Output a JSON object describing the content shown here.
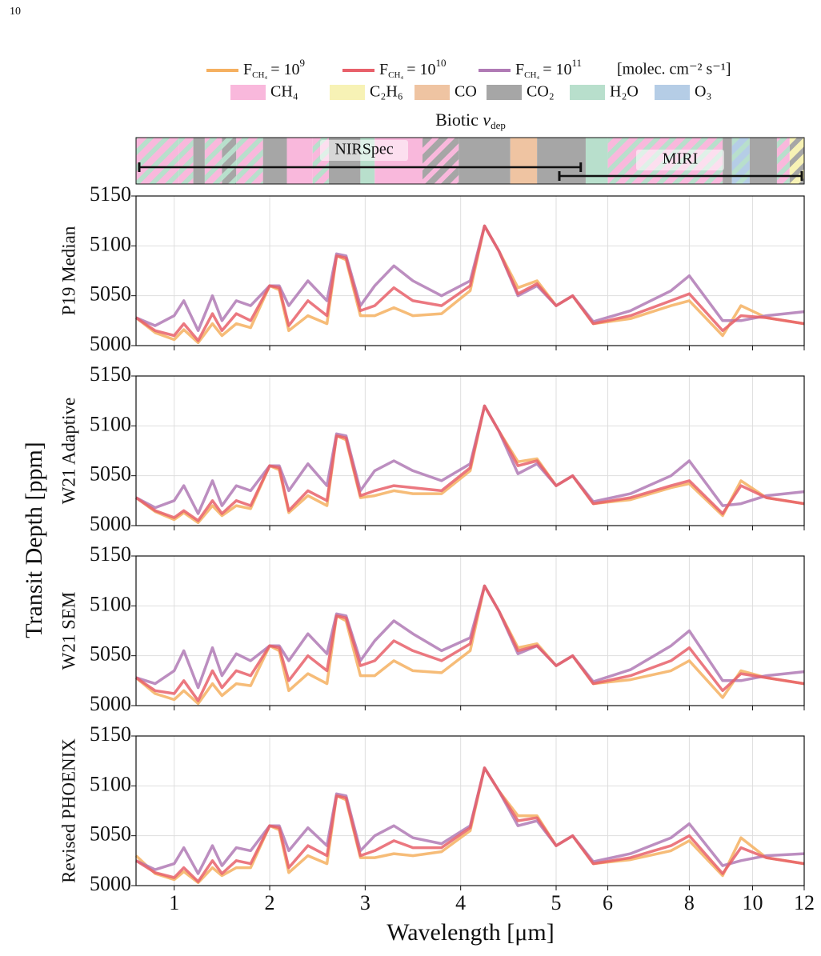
{
  "page_number": "10",
  "legend": {
    "series": [
      {
        "name": [
          "F",
          "CH₄",
          "= 10",
          "9"
        ],
        "color": "#f5b060"
      },
      {
        "name": [
          "F",
          "CH₄",
          "= 10",
          "10"
        ],
        "color": "#e8606a"
      },
      {
        "name": [
          "F",
          "CH₄",
          "= 10",
          "11"
        ],
        "color": "#b07ab5"
      }
    ],
    "units": "[molec. cm⁻² s⁻¹]"
  },
  "absorbers": {
    "title": [
      "Biotic ",
      "v",
      "dep"
    ],
    "species": [
      {
        "name": "CH₄",
        "color": "#f9b8dc"
      },
      {
        "name": "C₂H₆",
        "color": "#f7f2b5"
      },
      {
        "name": "CO",
        "color": "#efc4a2"
      },
      {
        "name": "CO₂",
        "color": "#a6a6a6"
      },
      {
        "name": "H₂O",
        "color": "#b8dfcc"
      },
      {
        "name": "O₃",
        "color": "#b5cde6"
      }
    ],
    "bands": [
      {
        "species": [
          0,
          4
        ],
        "range": [
          0.6,
          1.05
        ]
      },
      {
        "species": [
          0,
          4
        ],
        "range": [
          1.05,
          1.2
        ]
      },
      {
        "species": [
          3
        ],
        "range": [
          1.2,
          1.32
        ]
      },
      {
        "species": [
          0,
          4
        ],
        "range": [
          1.32,
          1.5
        ]
      },
      {
        "species": [
          3,
          4
        ],
        "range": [
          1.5,
          1.65
        ]
      },
      {
        "species": [
          0,
          4
        ],
        "range": [
          1.65,
          1.93
        ]
      },
      {
        "species": [
          3
        ],
        "range": [
          1.93,
          2.18
        ]
      },
      {
        "species": [
          0
        ],
        "range": [
          2.18,
          2.45
        ]
      },
      {
        "species": [
          0,
          4
        ],
        "range": [
          2.45,
          2.62
        ]
      },
      {
        "species": [
          3
        ],
        "range": [
          2.62,
          2.95
        ]
      },
      {
        "species": [
          4
        ],
        "range": [
          2.95,
          3.1
        ]
      },
      {
        "species": [
          0
        ],
        "range": [
          3.1,
          3.6
        ]
      },
      {
        "species": [
          3,
          0
        ],
        "range": [
          3.6,
          3.98
        ]
      },
      {
        "species": [
          3
        ],
        "range": [
          3.98,
          4.52
        ]
      },
      {
        "species": [
          2
        ],
        "range": [
          4.52,
          4.8
        ]
      },
      {
        "species": [
          3
        ],
        "range": [
          4.8,
          5.55
        ]
      },
      {
        "species": [
          4
        ],
        "range": [
          5.55,
          6.0
        ]
      },
      {
        "species": [
          0,
          4
        ],
        "range": [
          6.0,
          9.0
        ]
      },
      {
        "species": [
          3
        ],
        "range": [
          9.0,
          9.3
        ]
      },
      {
        "species": [
          5,
          4
        ],
        "range": [
          9.3,
          9.9
        ]
      },
      {
        "species": [
          3
        ],
        "range": [
          9.9,
          10.9
        ]
      },
      {
        "species": [
          0,
          4
        ],
        "range": [
          10.9,
          11.4
        ]
      },
      {
        "species": [
          1,
          3
        ],
        "range": [
          11.4,
          12.0
        ]
      }
    ],
    "instruments": [
      {
        "name": "NIRSpec",
        "range": [
          0.6,
          5.5
        ]
      },
      {
        "name": "MIRI",
        "range": [
          5.0,
          12.0
        ]
      }
    ]
  },
  "xlabel": "Wavelength [μm]",
  "ylabel": "Transit Depth [ppm]",
  "xlim": [
    0.6,
    12
  ],
  "xscale": "linear-log",
  "xbreak": 5,
  "xticks": [
    1,
    2,
    3,
    4,
    5,
    6,
    8,
    10,
    12
  ],
  "grid": true,
  "chart_data": [
    {
      "type": "line",
      "ylabel": "P19 Median",
      "ylim": [
        5000,
        5150
      ],
      "yticks": [
        5000,
        5050,
        5100,
        5150
      ],
      "x": [
        0.6,
        0.8,
        1.0,
        1.1,
        1.25,
        1.4,
        1.5,
        1.65,
        1.8,
        2.0,
        2.1,
        2.2,
        2.4,
        2.6,
        2.7,
        2.8,
        2.95,
        3.1,
        3.3,
        3.5,
        3.8,
        4.1,
        4.25,
        4.4,
        4.6,
        4.8,
        5.0,
        5.3,
        5.7,
        6.5,
        7.5,
        8.0,
        9.0,
        9.6,
        10.5,
        12.0
      ],
      "series": [
        {
          "values": [
            5028,
            5013,
            5006,
            5016,
            5003,
            5022,
            5010,
            5022,
            5018,
            5060,
            5056,
            5015,
            5030,
            5022,
            5090,
            5086,
            5030,
            5030,
            5038,
            5030,
            5032,
            5055,
            5120,
            5095,
            5058,
            5065,
            5040,
            5050,
            5022,
            5027,
            5040,
            5045,
            5010,
            5040,
            5028,
            5022
          ]
        },
        {
          "values": [
            5028,
            5015,
            5010,
            5022,
            5005,
            5032,
            5015,
            5032,
            5025,
            5060,
            5058,
            5020,
            5045,
            5030,
            5090,
            5088,
            5035,
            5040,
            5058,
            5045,
            5040,
            5060,
            5120,
            5095,
            5052,
            5062,
            5040,
            5050,
            5022,
            5030,
            5045,
            5052,
            5015,
            5030,
            5028,
            5022
          ]
        },
        {
          "values": [
            5028,
            5020,
            5030,
            5045,
            5015,
            5050,
            5025,
            5045,
            5040,
            5060,
            5060,
            5040,
            5065,
            5045,
            5092,
            5090,
            5040,
            5060,
            5080,
            5065,
            5050,
            5065,
            5120,
            5095,
            5050,
            5060,
            5040,
            5050,
            5024,
            5035,
            5055,
            5070,
            5025,
            5025,
            5030,
            5034
          ]
        }
      ]
    },
    {
      "type": "line",
      "ylabel": "W21 Adaptive",
      "ylim": [
        5000,
        5150
      ],
      "yticks": [
        5000,
        5050,
        5100,
        5150
      ],
      "x": [
        0.6,
        0.8,
        1.0,
        1.1,
        1.25,
        1.4,
        1.5,
        1.65,
        1.8,
        2.0,
        2.1,
        2.2,
        2.4,
        2.6,
        2.7,
        2.8,
        2.95,
        3.1,
        3.3,
        3.5,
        3.8,
        4.1,
        4.25,
        4.4,
        4.6,
        4.8,
        5.0,
        5.3,
        5.7,
        6.5,
        7.5,
        8.0,
        9.0,
        9.6,
        10.5,
        12.0
      ],
      "series": [
        {
          "values": [
            5028,
            5014,
            5006,
            5013,
            5003,
            5020,
            5010,
            5020,
            5017,
            5060,
            5056,
            5013,
            5030,
            5020,
            5090,
            5086,
            5028,
            5030,
            5035,
            5032,
            5032,
            5055,
            5120,
            5095,
            5064,
            5067,
            5040,
            5050,
            5022,
            5026,
            5038,
            5042,
            5010,
            5045,
            5028,
            5022
          ]
        },
        {
          "values": [
            5028,
            5015,
            5008,
            5015,
            5005,
            5025,
            5012,
            5025,
            5020,
            5060,
            5058,
            5015,
            5035,
            5025,
            5090,
            5088,
            5030,
            5035,
            5040,
            5038,
            5035,
            5058,
            5120,
            5095,
            5060,
            5065,
            5040,
            5050,
            5022,
            5028,
            5040,
            5045,
            5012,
            5040,
            5028,
            5022
          ]
        },
        {
          "values": [
            5028,
            5018,
            5025,
            5040,
            5012,
            5045,
            5020,
            5040,
            5035,
            5060,
            5060,
            5035,
            5062,
            5040,
            5092,
            5090,
            5035,
            5055,
            5065,
            5055,
            5045,
            5062,
            5120,
            5095,
            5052,
            5062,
            5040,
            5050,
            5024,
            5032,
            5050,
            5065,
            5020,
            5022,
            5030,
            5034
          ]
        }
      ]
    },
    {
      "type": "line",
      "ylabel": "W21 SEM",
      "ylim": [
        5000,
        5150
      ],
      "yticks": [
        5000,
        5050,
        5100,
        5150
      ],
      "x": [
        0.6,
        0.8,
        1.0,
        1.1,
        1.25,
        1.4,
        1.5,
        1.65,
        1.8,
        2.0,
        2.1,
        2.2,
        2.4,
        2.6,
        2.7,
        2.8,
        2.95,
        3.1,
        3.3,
        3.5,
        3.8,
        4.1,
        4.25,
        4.4,
        4.6,
        4.8,
        5.0,
        5.3,
        5.7,
        6.5,
        7.5,
        8.0,
        9.0,
        9.6,
        10.5,
        12.0
      ],
      "series": [
        {
          "values": [
            5028,
            5012,
            5006,
            5015,
            5002,
            5022,
            5010,
            5022,
            5020,
            5060,
            5055,
            5015,
            5032,
            5022,
            5090,
            5085,
            5030,
            5030,
            5045,
            5035,
            5033,
            5055,
            5120,
            5095,
            5058,
            5062,
            5040,
            5050,
            5022,
            5026,
            5035,
            5045,
            5008,
            5035,
            5028,
            5022
          ]
        },
        {
          "values": [
            5028,
            5015,
            5012,
            5025,
            5005,
            5035,
            5018,
            5035,
            5030,
            5060,
            5058,
            5025,
            5050,
            5035,
            5090,
            5088,
            5040,
            5045,
            5065,
            5055,
            5045,
            5062,
            5120,
            5095,
            5055,
            5060,
            5040,
            5050,
            5022,
            5030,
            5045,
            5058,
            5015,
            5032,
            5028,
            5022
          ]
        },
        {
          "values": [
            5028,
            5022,
            5035,
            5055,
            5018,
            5058,
            5030,
            5052,
            5045,
            5060,
            5060,
            5045,
            5072,
            5052,
            5092,
            5090,
            5045,
            5065,
            5085,
            5072,
            5055,
            5068,
            5120,
            5095,
            5052,
            5060,
            5040,
            5050,
            5024,
            5036,
            5060,
            5075,
            5025,
            5025,
            5030,
            5034
          ]
        }
      ]
    },
    {
      "type": "line",
      "ylabel": "Revised PHOENIX",
      "ylim": [
        5000,
        5150
      ],
      "yticks": [
        5000,
        5050,
        5100,
        5150
      ],
      "x": [
        0.6,
        0.8,
        1.0,
        1.1,
        1.25,
        1.4,
        1.5,
        1.65,
        1.8,
        2.0,
        2.1,
        2.2,
        2.4,
        2.6,
        2.7,
        2.8,
        2.95,
        3.1,
        3.3,
        3.5,
        3.8,
        4.1,
        4.25,
        4.4,
        4.6,
        4.8,
        5.0,
        5.3,
        5.7,
        6.5,
        7.5,
        8.0,
        9.0,
        9.6,
        10.5,
        12.0
      ],
      "series": [
        {
          "values": [
            5030,
            5012,
            5006,
            5014,
            5003,
            5018,
            5010,
            5018,
            5018,
            5060,
            5056,
            5013,
            5030,
            5022,
            5090,
            5086,
            5028,
            5028,
            5032,
            5030,
            5034,
            5055,
            5118,
            5095,
            5070,
            5070,
            5040,
            5050,
            5022,
            5026,
            5035,
            5045,
            5010,
            5048,
            5028,
            5022
          ]
        },
        {
          "values": [
            5025,
            5013,
            5008,
            5018,
            5004,
            5025,
            5012,
            5025,
            5022,
            5060,
            5058,
            5018,
            5040,
            5030,
            5090,
            5088,
            5030,
            5035,
            5045,
            5038,
            5038,
            5058,
            5118,
            5095,
            5065,
            5068,
            5040,
            5050,
            5022,
            5028,
            5040,
            5050,
            5012,
            5038,
            5028,
            5022
          ]
        },
        {
          "values": [
            5025,
            5016,
            5022,
            5038,
            5012,
            5040,
            5020,
            5038,
            5035,
            5060,
            5060,
            5035,
            5058,
            5040,
            5092,
            5090,
            5035,
            5050,
            5060,
            5048,
            5042,
            5060,
            5118,
            5095,
            5060,
            5065,
            5040,
            5050,
            5024,
            5032,
            5048,
            5062,
            5020,
            5025,
            5030,
            5032
          ]
        }
      ]
    }
  ]
}
